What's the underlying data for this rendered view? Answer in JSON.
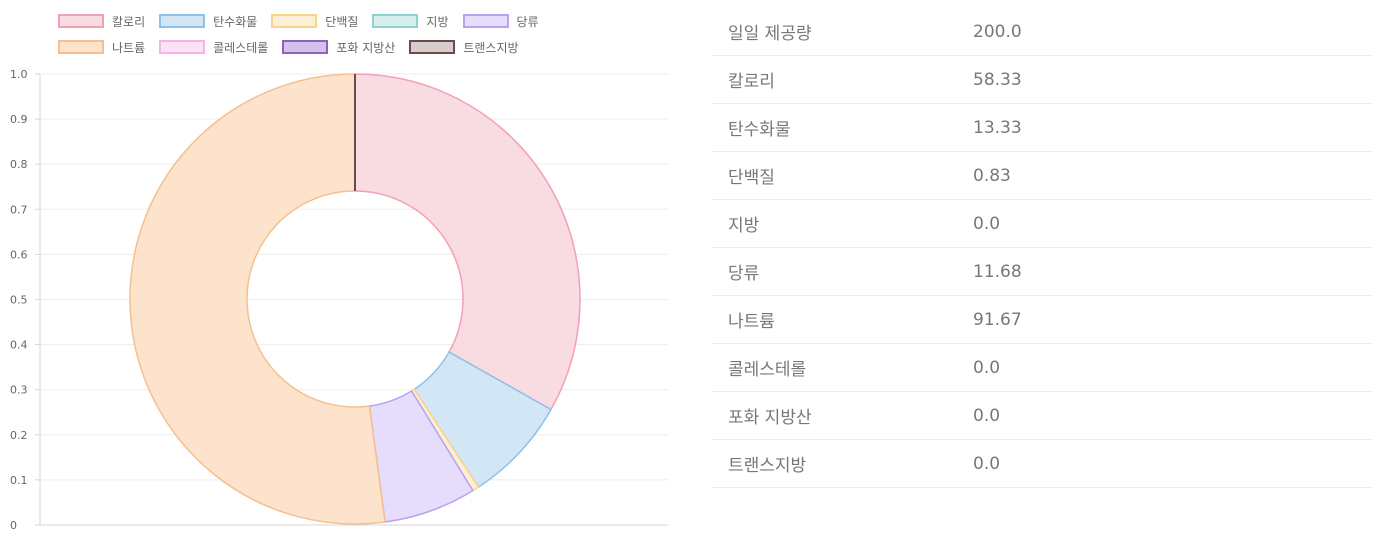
{
  "chart_data": {
    "type": "pie",
    "variant": "doughnut",
    "y_axis": {
      "range": [
        0,
        1.0
      ],
      "ticks": [
        "1.0",
        "0.9",
        "0.8",
        "0.7",
        "0.6",
        "0.5",
        "0.4",
        "0.3",
        "0.2",
        "0.1",
        "0"
      ]
    },
    "grid": true,
    "legend_position": "top",
    "slices": [
      {
        "label": "칼로리",
        "value": 58.33,
        "fill": "#f9dbe2",
        "stroke": "#f2a1b3"
      },
      {
        "label": "탄수화물",
        "value": 13.33,
        "fill": "#d3e6f6",
        "stroke": "#8ec1ea"
      },
      {
        "label": "단백질",
        "value": 0.83,
        "fill": "#fdefd5",
        "stroke": "#f7d58a"
      },
      {
        "label": "지방",
        "value": 0.0,
        "fill": "#d6f0ef",
        "stroke": "#8fd3cf"
      },
      {
        "label": "당류",
        "value": 11.68,
        "fill": "#e6dcfb",
        "stroke": "#b9a2f2"
      },
      {
        "label": "나트륨",
        "value": 91.67,
        "fill": "#fde3cc",
        "stroke": "#f4c08f"
      },
      {
        "label": "콜레스테롤",
        "value": 0.0,
        "fill": "#fde2f6",
        "stroke": "#f4b3e6"
      },
      {
        "label": "포화 지방산",
        "value": 0.0,
        "fill": "#d4c2ea",
        "stroke": "#8a63bf"
      },
      {
        "label": "트랜스지방",
        "value": 0.0,
        "fill": "#d8cccc",
        "stroke": "#6a4a4a"
      }
    ]
  },
  "table": {
    "rows": [
      {
        "name": "일일 제공량",
        "value": "200.0"
      },
      {
        "name": "칼로리",
        "value": "58.33"
      },
      {
        "name": "탄수화물",
        "value": "13.33"
      },
      {
        "name": "단백질",
        "value": "0.83"
      },
      {
        "name": "지방",
        "value": "0.0"
      },
      {
        "name": "당류",
        "value": "11.68"
      },
      {
        "name": "나트륨",
        "value": "91.67"
      },
      {
        "name": "콜레스테롤",
        "value": "0.0"
      },
      {
        "name": "포화 지방산",
        "value": "0.0"
      },
      {
        "name": "트랜스지방",
        "value": "0.0"
      }
    ]
  }
}
